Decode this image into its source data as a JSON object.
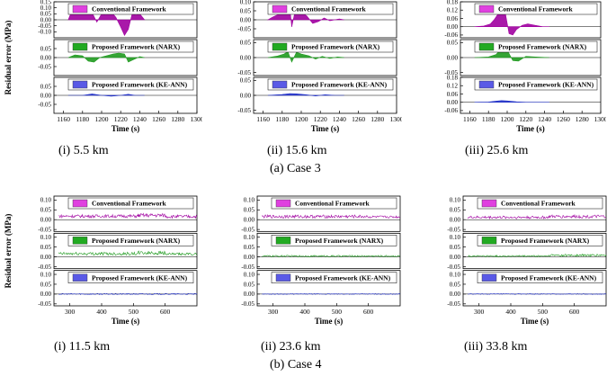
{
  "colors": {
    "conventional": "#a000a0",
    "narx": "#1f9a1f",
    "keann": "#2030c8",
    "legend_conventional": "#e040e0",
    "legend_narx": "#22aa22",
    "legend_keann": "#5a5ae6"
  },
  "legend_labels": [
    "Conventional Framework",
    "Proposed Framework (NARX)",
    "Proposed Framework (KE-ANN)"
  ],
  "case_captions": [
    "(a) Case 3",
    "(b) Case 4"
  ],
  "chart_data": [
    {
      "type": "area",
      "case": "Case 3",
      "caption": "(i) 5.5 km",
      "xlabel": "Time (s)",
      "ylabel": "Residual error (MPa)",
      "xlim": [
        1150,
        1300
      ],
      "xticks": [
        1160,
        1180,
        1200,
        1220,
        1240,
        1260,
        1280,
        1300
      ],
      "panels": [
        {
          "name": "Conventional Framework",
          "ylim": [
            -0.15,
            0.15
          ],
          "yticks": [
            0.15,
            0.1,
            0.05,
            0.0,
            -0.05,
            -0.1
          ],
          "x": [
            1165,
            1170,
            1175,
            1180,
            1185,
            1190,
            1195,
            1200,
            1205,
            1210,
            1215,
            1220,
            1224,
            1228,
            1232,
            1236,
            1240,
            1245
          ],
          "y": [
            0.0,
            0.1,
            0.09,
            0.11,
            0.12,
            0.06,
            -0.02,
            0.05,
            0.04,
            0.07,
            0.02,
            -0.06,
            -0.13,
            -0.08,
            0.05,
            0.04,
            0.05,
            0.0
          ]
        },
        {
          "name": "Proposed Framework (NARX)",
          "ylim": [
            -0.1,
            0.1
          ],
          "yticks": [
            0.05,
            0.0,
            -0.05
          ],
          "x": [
            1165,
            1172,
            1180,
            1186,
            1192,
            1198,
            1205,
            1212,
            1218,
            1224,
            1228,
            1234,
            1240,
            1245
          ],
          "y": [
            0.0,
            0.015,
            0.01,
            -0.02,
            -0.025,
            0.0,
            0.01,
            0.02,
            0.025,
            0.02,
            -0.025,
            -0.01,
            0.005,
            0.0
          ]
        },
        {
          "name": "Proposed Framework (KE-ANN)",
          "ylim": [
            -0.1,
            0.1
          ],
          "yticks": [
            0.05,
            0.0,
            -0.05
          ],
          "x": [
            1165,
            1180,
            1190,
            1200,
            1210,
            1220,
            1228,
            1235,
            1245
          ],
          "y": [
            0.0,
            0.0,
            0.008,
            0.0,
            -0.005,
            0.0,
            0.006,
            0.0,
            0.0
          ]
        }
      ]
    },
    {
      "type": "area",
      "case": "Case 3",
      "caption": "(ii) 15.6 km",
      "xlabel": "Time (s)",
      "ylabel": "",
      "xlim": [
        1150,
        1300
      ],
      "xticks": [
        1160,
        1180,
        1200,
        1220,
        1240,
        1260,
        1280,
        1300
      ],
      "panels": [
        {
          "name": "Conventional Framework",
          "ylim": [
            -0.1,
            0.1
          ],
          "yticks": [
            0.1,
            0.05,
            0.0,
            -0.05
          ],
          "x": [
            1165,
            1170,
            1176,
            1182,
            1188,
            1190,
            1194,
            1200,
            1206,
            1212,
            1218,
            1224,
            1230,
            1240,
            1245
          ],
          "y": [
            0.0,
            0.015,
            0.03,
            0.045,
            0.07,
            -0.04,
            0.06,
            0.045,
            0.02,
            -0.02,
            -0.01,
            0.01,
            -0.005,
            0.005,
            0.0
          ]
        },
        {
          "name": "Proposed Framework (NARX)",
          "ylim": [
            -0.06,
            0.06
          ],
          "yticks": [
            0.05,
            0.0,
            -0.05
          ],
          "x": [
            1165,
            1175,
            1182,
            1186,
            1190,
            1195,
            1200,
            1208,
            1215,
            1222,
            1230,
            1238,
            1245
          ],
          "y": [
            0.0,
            0.005,
            0.012,
            0.02,
            -0.015,
            0.018,
            0.012,
            0.006,
            -0.005,
            0.004,
            -0.003,
            0.002,
            0.0
          ]
        },
        {
          "name": "Proposed Framework (KE-ANN)",
          "ylim": [
            -0.06,
            0.06
          ],
          "yticks": [
            0.05,
            0.0,
            -0.05
          ],
          "x": [
            1165,
            1180,
            1188,
            1195,
            1205,
            1215,
            1225,
            1235,
            1245
          ],
          "y": [
            0.0,
            0.003,
            0.006,
            0.005,
            0.002,
            -0.002,
            0.002,
            0.0,
            0.0
          ]
        }
      ]
    },
    {
      "type": "area",
      "case": "Case 3",
      "caption": "(iii) 25.6 km",
      "xlabel": "Time (s)",
      "ylabel": "",
      "xlim": [
        1150,
        1300
      ],
      "xticks": [
        1160,
        1180,
        1200,
        1220,
        1240,
        1260,
        1280,
        1300
      ],
      "panels": [
        {
          "name": "Conventional Framework",
          "ylim": [
            -0.08,
            0.18
          ],
          "yticks": [
            0.18,
            0.12,
            0.06,
            0.0,
            -0.06
          ],
          "x": [
            1165,
            1175,
            1182,
            1186,
            1190,
            1194,
            1198,
            1202,
            1206,
            1210,
            1216,
            1222,
            1230,
            1238,
            1245
          ],
          "y": [
            0.0,
            0.005,
            0.02,
            0.05,
            0.09,
            0.13,
            0.1,
            -0.05,
            -0.06,
            -0.02,
            0.01,
            0.02,
            0.01,
            0.0,
            0.0
          ]
        },
        {
          "name": "Proposed Framework (NARX)",
          "ylim": [
            -0.06,
            0.06
          ],
          "yticks": [
            0.05,
            0.0,
            -0.05
          ],
          "x": [
            1165,
            1180,
            1188,
            1194,
            1200,
            1206,
            1212,
            1220,
            1230,
            1245
          ],
          "y": [
            0.0,
            0.002,
            0.01,
            0.03,
            0.025,
            -0.01,
            -0.012,
            0.004,
            0.002,
            0.0
          ]
        },
        {
          "name": "Proposed Framework (KE-ANN)",
          "ylim": [
            -0.08,
            0.18
          ],
          "yticks": [
            0.18,
            0.12,
            0.06,
            0.0,
            -0.06
          ],
          "x": [
            1165,
            1180,
            1188,
            1194,
            1200,
            1210,
            1220,
            1235,
            1245
          ],
          "y": [
            0.0,
            0.002,
            0.008,
            0.012,
            0.01,
            0.003,
            0.0,
            0.0,
            0.0
          ]
        }
      ]
    },
    {
      "type": "line",
      "case": "Case 4",
      "caption": "(i) 11.5 km",
      "xlabel": "Time (s)",
      "ylabel": "Residual error (MPa)",
      "xlim": [
        250,
        700
      ],
      "xticks": [
        300,
        400,
        500,
        600
      ],
      "panels": [
        {
          "name": "Conventional Framework",
          "ylim": [
            -0.06,
            0.12
          ],
          "yticks": [
            0.1,
            0.05,
            0.0,
            -0.05
          ],
          "segments": [
            {
              "from": 265,
              "to": 515,
              "level": 0.018,
              "amp": 0.008
            },
            {
              "from": 515,
              "to": 600,
              "level": 0.022,
              "amp": 0.01
            },
            {
              "from": 600,
              "to": 700,
              "level": 0.016,
              "amp": 0.008
            }
          ]
        },
        {
          "name": "Proposed Framework (NARX)",
          "ylim": [
            -0.06,
            0.12
          ],
          "yticks": [
            0.1,
            0.05,
            0.0,
            -0.05
          ],
          "segments": [
            {
              "from": 265,
              "to": 515,
              "level": 0.016,
              "amp": 0.008
            },
            {
              "from": 515,
              "to": 600,
              "level": 0.02,
              "amp": 0.01
            },
            {
              "from": 600,
              "to": 700,
              "level": 0.014,
              "amp": 0.006
            }
          ]
        },
        {
          "name": "Proposed Framework (KE-ANN)",
          "ylim": [
            -0.06,
            0.12
          ],
          "yticks": [
            0.1,
            0.05,
            0.0,
            -0.05
          ],
          "segments": [
            {
              "from": 265,
              "to": 700,
              "level": 0.0,
              "amp": 0.003
            }
          ]
        }
      ]
    },
    {
      "type": "line",
      "case": "Case 4",
      "caption": "(ii) 23.6 km",
      "xlabel": "Time (s)",
      "ylabel": "",
      "xlim": [
        250,
        700
      ],
      "xticks": [
        300,
        400,
        500,
        600
      ],
      "panels": [
        {
          "name": "Conventional Framework",
          "ylim": [
            -0.06,
            0.12
          ],
          "yticks": [
            0.1,
            0.05,
            0.0,
            -0.05
          ],
          "segments": [
            {
              "from": 265,
              "to": 595,
              "level": 0.016,
              "amp": 0.008
            },
            {
              "from": 600,
              "to": 700,
              "level": 0.014,
              "amp": 0.006
            }
          ]
        },
        {
          "name": "Proposed Framework (NARX)",
          "ylim": [
            -0.06,
            0.12
          ],
          "yticks": [
            0.1,
            0.05,
            0.0,
            -0.05
          ],
          "segments": [
            {
              "from": 265,
              "to": 700,
              "level": 0.004,
              "amp": 0.004
            }
          ]
        },
        {
          "name": "Proposed Framework (KE-ANN)",
          "ylim": [
            -0.06,
            0.12
          ],
          "yticks": [
            0.1,
            0.05,
            0.0,
            -0.05
          ],
          "segments": [
            {
              "from": 265,
              "to": 700,
              "level": 0.0,
              "amp": 0.002
            }
          ]
        }
      ]
    },
    {
      "type": "line",
      "case": "Case 4",
      "caption": "(iii) 33.8 km",
      "xlabel": "Time (s)",
      "ylabel": "",
      "xlim": [
        250,
        700
      ],
      "xticks": [
        300,
        400,
        500,
        600
      ],
      "panels": [
        {
          "name": "Conventional Framework",
          "ylim": [
            -0.06,
            0.12
          ],
          "yticks": [
            0.1,
            0.05,
            0.0,
            -0.05
          ],
          "segments": [
            {
              "from": 265,
              "to": 520,
              "level": 0.012,
              "amp": 0.007
            },
            {
              "from": 520,
              "to": 700,
              "level": 0.016,
              "amp": 0.008
            }
          ]
        },
        {
          "name": "Proposed Framework (NARX)",
          "ylim": [
            -0.06,
            0.12
          ],
          "yticks": [
            0.1,
            0.05,
            0.0,
            -0.05
          ],
          "segments": [
            {
              "from": 265,
              "to": 520,
              "level": 0.004,
              "amp": 0.004
            },
            {
              "from": 520,
              "to": 700,
              "level": 0.008,
              "amp": 0.006
            }
          ]
        },
        {
          "name": "Proposed Framework (KE-ANN)",
          "ylim": [
            -0.06,
            0.12
          ],
          "yticks": [
            0.1,
            0.05,
            0.0,
            -0.05
          ],
          "segments": [
            {
              "from": 265,
              "to": 700,
              "level": 0.0,
              "amp": 0.002
            }
          ]
        }
      ]
    }
  ]
}
